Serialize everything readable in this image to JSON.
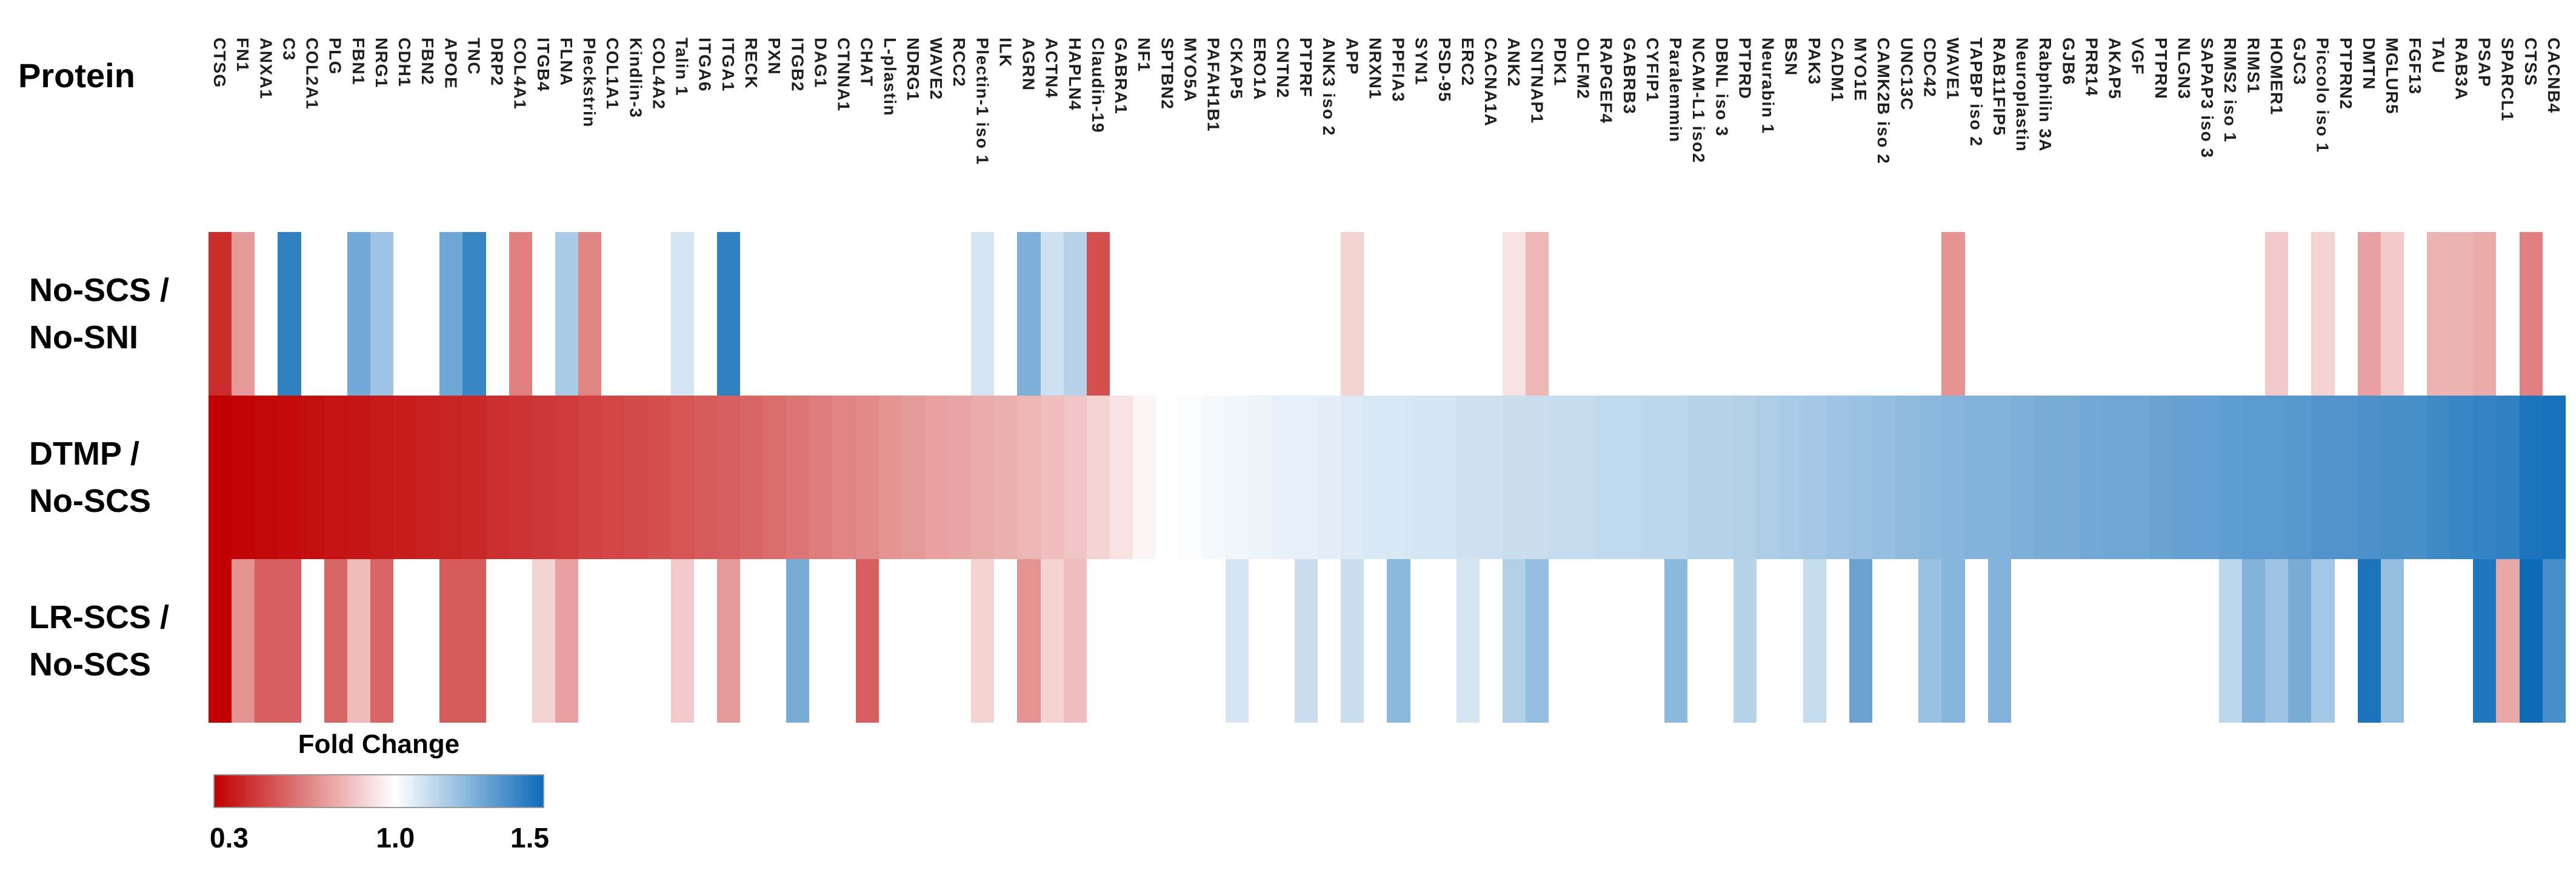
{
  "page": {
    "header": "Protein"
  },
  "chart_data": {
    "type": "heatmap",
    "title": "",
    "xlabel": "",
    "ylabel": "",
    "grid": false,
    "legend_position": "bottom-left",
    "categories": [
      "CTSG",
      "FN1",
      "ANXA1",
      "C3",
      "COL2A1",
      "PLG",
      "FBN1",
      "NRG1",
      "CDH1",
      "FBN2",
      "APOE",
      "TNC",
      "DRP2",
      "COL4A1",
      "ITGB4",
      "FLNA",
      "Pleckstrin",
      "COL1A1",
      "Kindlin-3",
      "COL4A2",
      "Talin 1",
      "ITGA6",
      "ITGA1",
      "RECK",
      "PXN",
      "ITGB2",
      "DAG1",
      "CTNNA1",
      "CHAT",
      "L-plastin",
      "NDRG1",
      "WAVE2",
      "RCC2",
      "Plectin-1 iso 1",
      "ILK",
      "AGRN",
      "ACTN4",
      "HAPLN4",
      "Claudin-19",
      "GABRA1",
      "NF1",
      "SPTBN2",
      "MYO5A",
      "PAFAH1B1",
      "CKAP5",
      "ERO1A",
      "CNTN2",
      "PTPRF",
      "ANK3 iso 2",
      "APP",
      "NRXN1",
      "PPFIA3",
      "SYN1",
      "PSD-95",
      "ERC2",
      "CACNA1A",
      "ANK2",
      "CNTNAP1",
      "PDK1",
      "OLFM2",
      "RAPGEF4",
      "GABRB3",
      "CYFIP1",
      "Paralemmin",
      "NCAM-L1 iso2",
      "DBNL iso 3",
      "PTPRD",
      "Neurabin 1",
      "BSN",
      "PAK3",
      "CADM1",
      "MYO1E",
      "CAMK2B iso 2",
      "UNC13C",
      "CDC42",
      "WAVE1",
      "TAPBP iso 2",
      "RAB11FIP5",
      "Neuroplastin",
      "Rabphilin 3A",
      "GJB6",
      "PRR14",
      "AKAP5",
      "VGF",
      "PTPRN",
      "NLGN3",
      "SAPAP3 iso 3",
      "RIMS2 iso 1",
      "RIMS1",
      "HOMER1",
      "GJC3",
      "Piccolo iso 1",
      "PTPRN2",
      "DMTN",
      "MGLUR5",
      "FGF13",
      "TAU",
      "RAB3A",
      "PSAP",
      "SPARCL1",
      "CTSS",
      "CACNB4"
    ],
    "series": [
      {
        "name": "No-SCS / No-SNI",
        "label_lines": [
          "No-SCS /",
          "No-SNI"
        ],
        "values": [
          0.42,
          0.72,
          null,
          1.43,
          null,
          null,
          1.29,
          1.2,
          null,
          null,
          1.3,
          1.41,
          null,
          0.65,
          null,
          1.18,
          0.66,
          null,
          null,
          null,
          1.09,
          null,
          1.43,
          null,
          null,
          null,
          null,
          null,
          null,
          null,
          null,
          null,
          null,
          1.09,
          null,
          1.27,
          1.1,
          1.15,
          0.52,
          null,
          null,
          null,
          null,
          null,
          null,
          null,
          null,
          null,
          null,
          0.88,
          null,
          null,
          null,
          null,
          null,
          null,
          0.92,
          0.8,
          null,
          null,
          null,
          null,
          null,
          null,
          null,
          null,
          null,
          null,
          null,
          null,
          null,
          null,
          null,
          null,
          null,
          0.7,
          null,
          null,
          null,
          null,
          null,
          null,
          null,
          null,
          null,
          null,
          null,
          null,
          null,
          0.85,
          null,
          0.88,
          null,
          0.74,
          0.85,
          null,
          0.79,
          0.79,
          0.77,
          null,
          0.65,
          null
        ]
      },
      {
        "name": "DTMP / No-SCS",
        "label_lines": [
          "DTMP /",
          "No-SCS"
        ],
        "values": [
          0.3,
          0.31,
          0.32,
          0.33,
          0.34,
          0.35,
          0.36,
          0.37,
          0.38,
          0.39,
          0.4,
          0.41,
          0.43,
          0.44,
          0.45,
          0.46,
          0.48,
          0.49,
          0.5,
          0.52,
          0.53,
          0.55,
          0.56,
          0.58,
          0.6,
          0.62,
          0.64,
          0.66,
          0.68,
          0.7,
          0.72,
          0.74,
          0.75,
          0.77,
          0.78,
          0.8,
          0.82,
          0.84,
          0.88,
          0.92,
          0.97,
          1.0,
          1.01,
          1.02,
          1.03,
          1.04,
          1.05,
          1.05,
          1.06,
          1.07,
          1.08,
          1.08,
          1.09,
          1.09,
          1.1,
          1.1,
          1.11,
          1.11,
          1.12,
          1.12,
          1.13,
          1.13,
          1.14,
          1.14,
          1.15,
          1.15,
          1.16,
          1.17,
          1.18,
          1.19,
          1.2,
          1.21,
          1.22,
          1.23,
          1.24,
          1.25,
          1.26,
          1.26,
          1.27,
          1.28,
          1.28,
          1.29,
          1.3,
          1.3,
          1.31,
          1.32,
          1.32,
          1.33,
          1.34,
          1.34,
          1.35,
          1.36,
          1.36,
          1.37,
          1.38,
          1.38,
          1.4,
          1.41,
          1.42,
          1.43,
          1.47,
          1.48
        ]
      },
      {
        "name": "LR-SCS / No-SCS",
        "label_lines": [
          "LR-SCS /",
          "No-SCS"
        ],
        "values": [
          0.3,
          0.7,
          0.56,
          0.56,
          null,
          0.58,
          0.81,
          0.58,
          null,
          null,
          0.55,
          0.55,
          null,
          null,
          0.88,
          0.74,
          null,
          null,
          null,
          null,
          0.85,
          null,
          0.72,
          null,
          null,
          1.28,
          null,
          null,
          0.56,
          null,
          null,
          null,
          null,
          0.88,
          null,
          0.7,
          0.88,
          0.82,
          null,
          null,
          null,
          null,
          null,
          null,
          1.09,
          null,
          null,
          1.11,
          null,
          1.11,
          null,
          1.24,
          null,
          null,
          1.09,
          null,
          1.16,
          1.22,
          null,
          null,
          null,
          null,
          null,
          1.24,
          null,
          null,
          1.15,
          null,
          null,
          1.12,
          null,
          1.31,
          null,
          null,
          1.21,
          1.25,
          null,
          1.26,
          null,
          null,
          null,
          null,
          null,
          null,
          null,
          null,
          null,
          1.14,
          1.26,
          1.2,
          1.28,
          1.19,
          null,
          1.47,
          1.22,
          null,
          null,
          null,
          1.46,
          0.76,
          1.5,
          1.38
        ]
      }
    ],
    "colorbar": {
      "title": "Fold Change",
      "ticks": [
        "0.3",
        "1.0",
        "1.5"
      ],
      "min": 0.3,
      "mid": 1.0,
      "max": 1.5,
      "min_color": "#c00000",
      "mid_color": "#ffffff",
      "max_color": "#0e6bb8",
      "no_data_color": "#ffffff"
    }
  }
}
